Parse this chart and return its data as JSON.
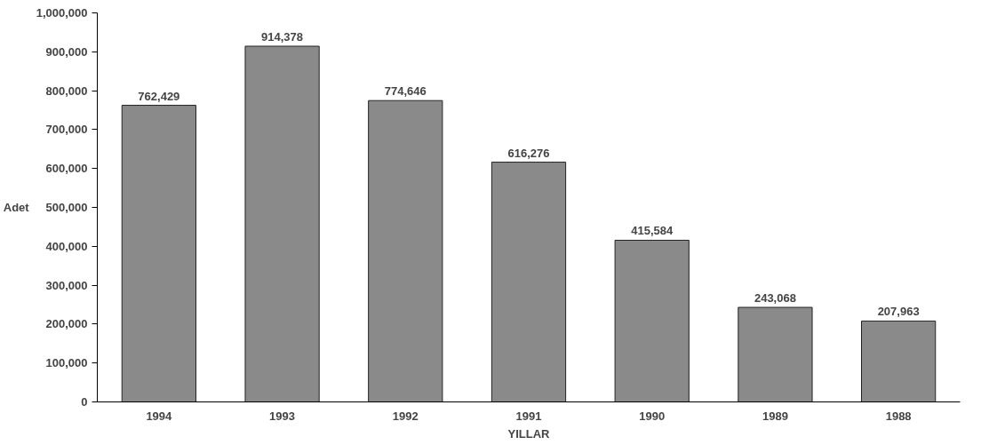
{
  "chart_data": {
    "type": "bar",
    "xlabel": "YILLAR",
    "ylabel": "Adet",
    "categories": [
      "1994",
      "1993",
      "1992",
      "1991",
      "1990",
      "1989",
      "1988"
    ],
    "values": [
      762429,
      914378,
      774646,
      616276,
      415584,
      243068,
      207963
    ],
    "value_labels": [
      "762,429",
      "914,378",
      "774,646",
      "616,276",
      "415,584",
      "243,068",
      "207,963"
    ],
    "color": "#8a8a8a",
    "grid": false,
    "ylim": [
      0,
      1000000
    ],
    "yticks": [
      0,
      {
        "value": 100000,
        "label": "100,000"
      },
      {
        "value": 200000,
        "label": "200,000"
      },
      {
        "value": 300000,
        "label": "300,000"
      },
      {
        "value": 400000,
        "label": "400,000"
      },
      {
        "value": 500000,
        "label": "500,000"
      },
      {
        "value": 600000,
        "label": "600,000"
      },
      {
        "value": 700000,
        "label": "700,000"
      },
      {
        "value": 800000,
        "label": "800,000"
      },
      {
        "value": 900000,
        "label": "900,000"
      },
      {
        "value": 1000000,
        "label": "1,000,000"
      }
    ]
  }
}
